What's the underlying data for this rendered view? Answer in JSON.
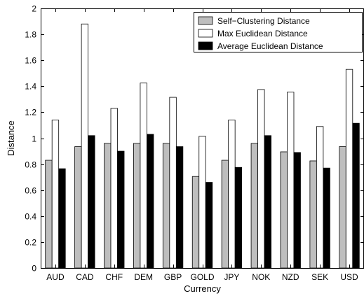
{
  "chart_data": {
    "type": "bar",
    "xlabel": "Currency",
    "ylabel": "Distance",
    "ylim": [
      0,
      2
    ],
    "yticks": [
      0,
      0.2,
      0.4,
      0.6,
      0.8,
      1,
      1.2,
      1.4,
      1.6,
      1.8,
      2
    ],
    "ytick_labels": [
      "0",
      "0.2",
      "0.4",
      "0.6",
      "0.8",
      "1",
      "1.2",
      "1.4",
      "1.6",
      "1.8",
      "2"
    ],
    "grid": false,
    "legend_position": "top-right",
    "categories": [
      "AUD",
      "CAD",
      "CHF",
      "DEM",
      "GBP",
      "GOLD",
      "JPY",
      "NOK",
      "NZD",
      "SEK",
      "USD"
    ],
    "series": [
      {
        "name": "Self−Clustering Distance",
        "color": "#bebebe",
        "values": [
          0.83,
          0.935,
          0.96,
          0.96,
          0.96,
          0.705,
          0.83,
          0.96,
          0.895,
          0.825,
          0.935
        ]
      },
      {
        "name": "Max Euclidean Distance",
        "color": "#ffffff",
        "values": [
          1.14,
          1.88,
          1.23,
          1.425,
          1.315,
          1.015,
          1.14,
          1.375,
          1.355,
          1.09,
          1.53
        ]
      },
      {
        "name": "Average Euclidean Distance",
        "color": "#000000",
        "values": [
          0.765,
          1.02,
          0.9,
          1.03,
          0.935,
          0.66,
          0.775,
          1.02,
          0.89,
          0.77,
          1.115
        ]
      }
    ]
  }
}
